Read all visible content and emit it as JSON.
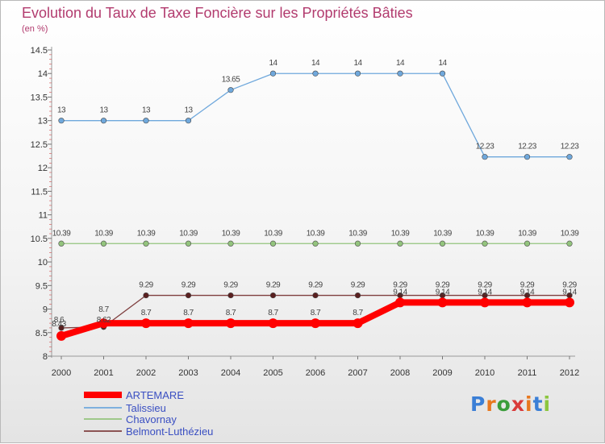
{
  "title": "Evolution du Taux de Taxe Foncière sur les Propriétés Bâties",
  "subtitle": "(en %)",
  "brand": {
    "text": "Proxiti",
    "letter_colors": [
      "#3b7fd6",
      "#e8781f",
      "#3b9d3b",
      "#d93a3a",
      "#e8781f",
      "#3b7fd6",
      "#8cc63f"
    ]
  },
  "chart_data": {
    "type": "line",
    "x": [
      "2000",
      "2001",
      "2002",
      "2003",
      "2004",
      "2005",
      "2006",
      "2007",
      "2008",
      "2009",
      "2010",
      "2011",
      "2012"
    ],
    "ylim": [
      8,
      14.5
    ],
    "yticks": [
      "8",
      "8.5",
      "9",
      "9.5",
      "10",
      "10.5",
      "11",
      "11.5",
      "12",
      "12.5",
      "13",
      "13.5",
      "14",
      "14.5"
    ],
    "grid": false,
    "legend_position": "bottom-left",
    "series": [
      {
        "name": "ARTEMARE",
        "color": "#ff0000",
        "values": [
          8.43,
          8.7,
          8.7,
          8.7,
          8.7,
          8.7,
          8.7,
          8.7,
          9.14,
          9.14,
          9.14,
          9.14,
          9.14
        ],
        "labels": [
          "8.43",
          "8.7",
          "8.7",
          "8.7",
          "8.7",
          "8.7",
          "8.7",
          "8.7",
          "9.14",
          "9.14",
          "9.14",
          "9.14",
          "9.14"
        ]
      },
      {
        "name": "Talissieu",
        "color": "#6fa8dc",
        "values": [
          13,
          13,
          13,
          13,
          13.65,
          14,
          14,
          14,
          14,
          14,
          12.23,
          12.23,
          12.23
        ],
        "labels": [
          "13",
          "13",
          "13",
          "13",
          "13.65",
          "14",
          "14",
          "14",
          "14",
          "14",
          "12.23",
          "12.23",
          "12.23"
        ]
      },
      {
        "name": "Chavornay",
        "color": "#93c47d",
        "values": [
          10.39,
          10.39,
          10.39,
          10.39,
          10.39,
          10.39,
          10.39,
          10.39,
          10.39,
          10.39,
          10.39,
          10.39,
          10.39
        ],
        "labels": [
          "10.39",
          "10.39",
          "10.39",
          "10.39",
          "10.39",
          "10.39",
          "10.39",
          "10.39",
          "10.39",
          "10.39",
          "10.39",
          "10.39",
          "10.39"
        ]
      },
      {
        "name": "Belmont-Luthézieu",
        "color": "#7f3f3f",
        "values": [
          8.6,
          8.62,
          9.29,
          9.29,
          9.29,
          9.29,
          9.29,
          9.29,
          9.29,
          9.29,
          9.29,
          9.29,
          9.29
        ],
        "labels": [
          "8.6",
          "8.62",
          "9.29",
          "9.29",
          "9.29",
          "9.29",
          "9.29",
          "9.29",
          "9.29",
          "9.29",
          "9.29",
          "9.29",
          "9.29"
        ]
      }
    ]
  }
}
